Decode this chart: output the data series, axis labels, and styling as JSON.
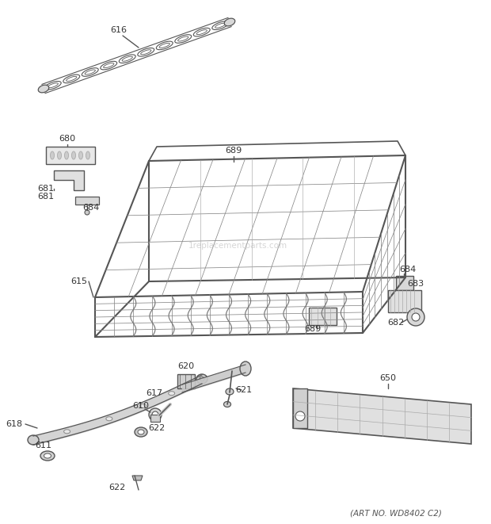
{
  "bg_color": "#ffffff",
  "art_no": "(ART NO. WD8402 C2)",
  "watermark": "1replacementparts.com",
  "line_color": "#555555",
  "label_color": "#333333"
}
